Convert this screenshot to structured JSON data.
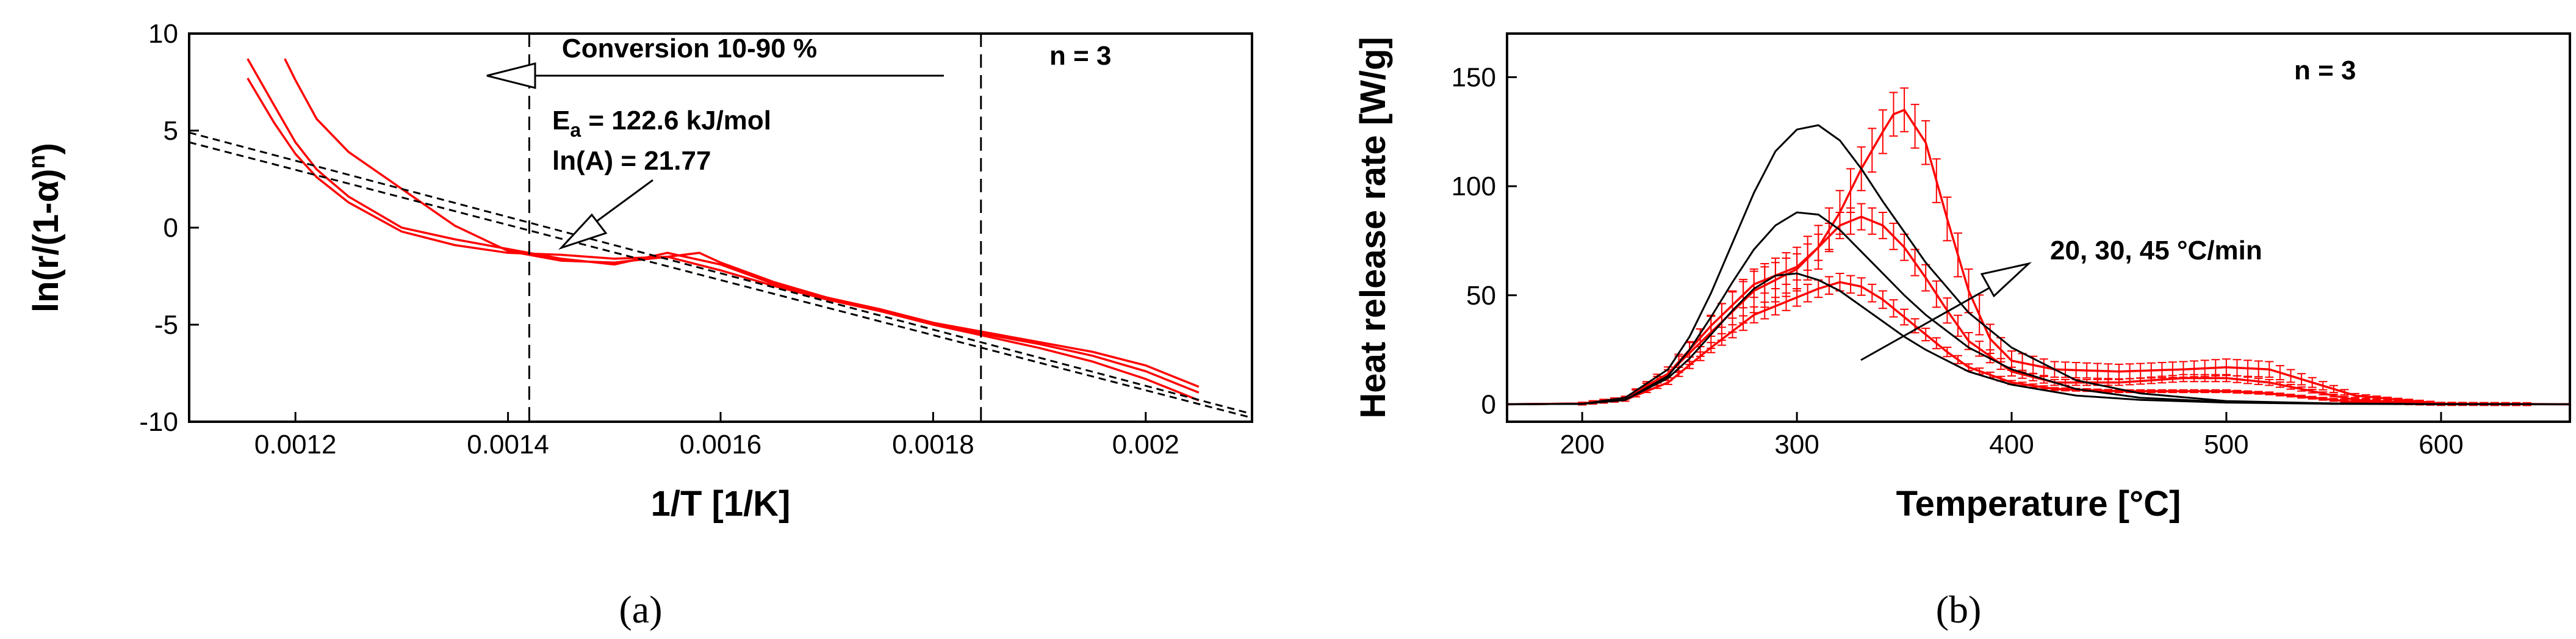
{
  "panel_labels": [
    "(a)",
    "(b)"
  ],
  "chart_data": [
    {
      "type": "line",
      "panel": "(a)",
      "title": "",
      "xlabel": "1/T [1/K]",
      "ylabel": "ln(r/(1-α)n)",
      "ylabel_parts": {
        "main": "ln(r/(1-α)",
        "superscript": "n",
        "close": ")"
      },
      "xlim": [
        0.0011,
        0.0021
      ],
      "ylim": [
        -10,
        10
      ],
      "x_ticks": [
        0.0012,
        0.0014,
        0.0016,
        0.0018,
        0.002
      ],
      "x_tick_labels": [
        "0.0012",
        "0.0014",
        "0.0016",
        "0.0018",
        "0.002"
      ],
      "y_ticks": [
        -10,
        -5,
        0,
        5,
        10
      ],
      "y_tick_labels": [
        "-10",
        "-5",
        "0",
        "5",
        "10"
      ],
      "grid": false,
      "colors": {
        "measured": "#ff0000",
        "fit": "#000000"
      },
      "annotations": {
        "conversion_label": "Conversion 10-90 %",
        "n_label": "n = 3",
        "ea_symbol": "E",
        "ea_subscript": "a",
        "ea_value": " = 122.6  kJ/mol",
        "lnA_label": "ln(A) = 21.77"
      },
      "conversion_range": [
        0.00142,
        0.001845
      ],
      "series": [
        {
          "style": "red-solid",
          "x": [
            0.001155,
            0.00118,
            0.0012,
            0.00122,
            0.00125,
            0.0013,
            0.00135,
            0.0014,
            0.00145,
            0.0015,
            0.00155,
            0.0016,
            0.00165,
            0.0017,
            0.00175,
            0.0018,
            0.00185,
            0.0019,
            0.00195,
            0.002,
            0.00205
          ],
          "y": [
            7.7,
            5.4,
            3.8,
            2.6,
            1.3,
            -0.2,
            -0.9,
            -1.3,
            -1.4,
            -1.6,
            -1.5,
            -2.2,
            -3.0,
            -3.7,
            -4.3,
            -4.9,
            -5.4,
            -5.9,
            -6.4,
            -7.1,
            -8.2
          ]
        },
        {
          "style": "red-solid",
          "x": [
            0.001155,
            0.00118,
            0.0012,
            0.00122,
            0.00125,
            0.0013,
            0.00135,
            0.0014,
            0.00145,
            0.0015,
            0.00155,
            0.0016,
            0.00165,
            0.0017,
            0.00175,
            0.0018,
            0.00185,
            0.0019,
            0.00195,
            0.002,
            0.00205
          ],
          "y": [
            8.7,
            6.3,
            4.4,
            3.0,
            1.6,
            0.0,
            -0.6,
            -1.1,
            -1.6,
            -1.9,
            -1.3,
            -1.9,
            -2.9,
            -3.6,
            -4.2,
            -4.9,
            -5.5,
            -6.0,
            -6.6,
            -7.4,
            -8.5
          ]
        },
        {
          "style": "red-solid",
          "x": [
            0.00119,
            0.0012,
            0.00122,
            0.00125,
            0.0013,
            0.00135,
            0.0014,
            0.00145,
            0.0015,
            0.00155,
            0.00158,
            0.0016,
            0.00165,
            0.0017,
            0.00175,
            0.0018,
            0.00185,
            0.0019,
            0.00195,
            0.002,
            0.00205
          ],
          "y": [
            8.7,
            7.6,
            5.6,
            3.9,
            2.0,
            0.1,
            -1.2,
            -1.7,
            -1.8,
            -1.5,
            -1.3,
            -1.8,
            -2.8,
            -3.6,
            -4.3,
            -5.0,
            -5.6,
            -6.2,
            -6.9,
            -7.8,
            -8.9
          ]
        },
        {
          "style": "black-dashed",
          "x": [
            0.0011,
            0.0021
          ],
          "y": [
            4.9,
            -9.6
          ]
        },
        {
          "style": "black-dashed",
          "x": [
            0.0011,
            0.0021
          ],
          "y": [
            4.4,
            -9.8
          ]
        }
      ]
    },
    {
      "type": "line",
      "panel": "(b)",
      "title": "",
      "xlabel": "Temperature [°C]",
      "ylabel": "Heat release rate [W/g]",
      "xlim": [
        165,
        660
      ],
      "ylim": [
        -8,
        170
      ],
      "x_ticks": [
        200,
        300,
        400,
        500,
        600
      ],
      "x_tick_labels": [
        "200",
        "300",
        "400",
        "500",
        "600"
      ],
      "y_ticks": [
        0,
        50,
        100,
        150
      ],
      "y_tick_labels": [
        "0",
        "50",
        "100",
        "150"
      ],
      "grid": false,
      "colors": {
        "measured": "#ff0000",
        "model": "#000000"
      },
      "annotations": {
        "n_label": "n = 3",
        "rates_label": "20, 30, 45 °C/min"
      },
      "series": [
        {
          "style": "red-errorbar",
          "x": [
            165,
            200,
            220,
            240,
            260,
            280,
            300,
            310,
            320,
            330,
            340,
            350,
            360,
            370,
            380,
            400,
            420,
            450,
            480,
            500,
            520,
            540,
            560,
            600,
            660
          ],
          "y": [
            0,
            0.3,
            2,
            10,
            26,
            41,
            49,
            53,
            56,
            54,
            48,
            40,
            32,
            24,
            17,
            10,
            7,
            6,
            6,
            6,
            5,
            3,
            1,
            0.1,
            0
          ],
          "err": 4
        },
        {
          "style": "red-errorbar",
          "x": [
            165,
            200,
            220,
            240,
            260,
            280,
            300,
            310,
            320,
            330,
            340,
            350,
            360,
            370,
            380,
            400,
            420,
            450,
            480,
            500,
            520,
            540,
            560,
            600,
            660
          ],
          "y": [
            0,
            0.3,
            3,
            14,
            36,
            55,
            63,
            72,
            82,
            86,
            82,
            72,
            58,
            43,
            29,
            15,
            10,
            10,
            12,
            12,
            10,
            6,
            2,
            0.2,
            0
          ],
          "err": 6
        },
        {
          "style": "red-errorbar",
          "x": [
            165,
            200,
            220,
            240,
            260,
            280,
            300,
            310,
            320,
            330,
            340,
            345,
            350,
            360,
            370,
            380,
            390,
            400,
            420,
            450,
            480,
            500,
            520,
            540,
            560,
            600,
            660
          ],
          "y": [
            0,
            0.3,
            3,
            14,
            33,
            52,
            62,
            72,
            88,
            108,
            125,
            133,
            135,
            120,
            85,
            52,
            30,
            20,
            16,
            15,
            16,
            17,
            16,
            10,
            4,
            0.3,
            0
          ],
          "err": 10
        },
        {
          "style": "black-solid",
          "x": [
            165,
            200,
            220,
            240,
            250,
            260,
            270,
            280,
            290,
            300,
            310,
            320,
            330,
            340,
            350,
            360,
            380,
            400,
            430,
            460,
            500,
            550,
            600,
            660
          ],
          "y": [
            0,
            0.2,
            2,
            12,
            21,
            32,
            43,
            53,
            59,
            60,
            57,
            52,
            45,
            38,
            31,
            25,
            15,
            9,
            4,
            2,
            0.8,
            0.2,
            0.05,
            0
          ]
        },
        {
          "style": "black-solid",
          "x": [
            165,
            200,
            220,
            240,
            250,
            260,
            270,
            280,
            290,
            300,
            310,
            320,
            330,
            340,
            350,
            360,
            380,
            400,
            430,
            460,
            500,
            550,
            600,
            660
          ],
          "y": [
            0,
            0.2,
            2,
            13,
            25,
            40,
            56,
            71,
            82,
            88,
            87,
            80,
            70,
            60,
            50,
            41,
            26,
            16,
            7,
            3,
            1,
            0.3,
            0.05,
            0
          ]
        },
        {
          "style": "black-solid",
          "x": [
            165,
            200,
            220,
            240,
            250,
            260,
            270,
            280,
            290,
            300,
            310,
            320,
            330,
            340,
            350,
            360,
            380,
            400,
            430,
            460,
            500,
            550,
            600,
            660
          ],
          "y": [
            0,
            0.2,
            3,
            16,
            31,
            51,
            74,
            97,
            116,
            126,
            128,
            121,
            108,
            93,
            79,
            65,
            42,
            26,
            11,
            5,
            1.5,
            0.4,
            0.05,
            0
          ]
        }
      ]
    }
  ]
}
